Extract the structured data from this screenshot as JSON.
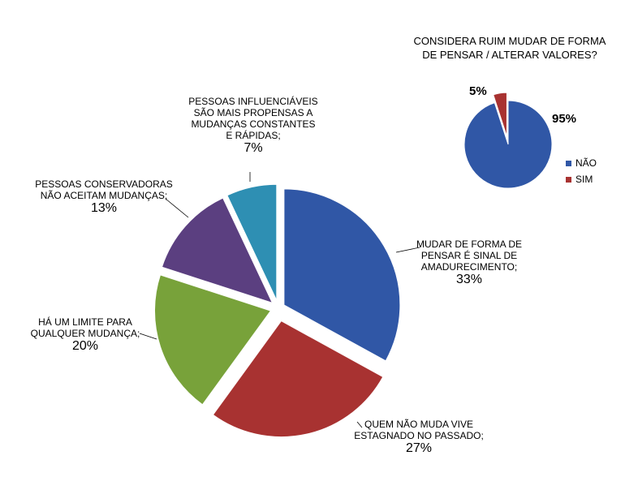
{
  "chart_data": [
    {
      "type": "pie",
      "title": "",
      "slices": [
        {
          "label": "MUDAR DE FORMA DE\nPENSAR É SINAL DE\nAMADURECIMENTO;",
          "value": 33,
          "value_label": "33%",
          "color": "#3057A6"
        },
        {
          "label": "QUEM NÃO MUDA VIVE\nESTAGNADO NO PASSADO;",
          "value": 27,
          "value_label": "27%",
          "color": "#A83231"
        },
        {
          "label": "HÁ UM LIMITE PARA\nQUALQUER MUDANÇA;",
          "value": 20,
          "value_label": "20%",
          "color": "#78A23A"
        },
        {
          "label": "PESSOAS CONSERVADORAS\nNÃO ACEITAM MUDANÇAS;",
          "value": 13,
          "value_label": "13%",
          "color": "#5B3F80"
        },
        {
          "label": "PESSOAS INFLUENCIÁVEIS\nSÃO MAIS PROPENSAS A\nMUDANÇAS CONSTANTES\nE RÁPIDAS;",
          "value": 7,
          "value_label": "7%",
          "color": "#2E8FB3"
        }
      ]
    },
    {
      "type": "pie",
      "title": "CONSIDERA RUIM MUDAR DE FORMA\nDE  PENSAR / ALTERAR VALORES?",
      "legend": "right",
      "slices": [
        {
          "label": "NÃO",
          "value": 95,
          "value_label": "95%",
          "color": "#3057A6"
        },
        {
          "label": "SIM",
          "value": 5,
          "value_label": "5%",
          "color": "#A83231"
        }
      ]
    }
  ]
}
